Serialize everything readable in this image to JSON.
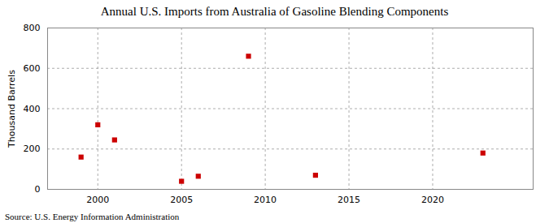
{
  "chart_data": {
    "type": "scatter",
    "title": "Annual U.S. Imports from Australia of Gasoline Blending Components",
    "ylabel": "Thousand Barrels",
    "annotation": "Source: U.S. Energy Information Administration",
    "x": [
      1999,
      2000,
      2001,
      2005,
      2006,
      2009,
      2013,
      2023
    ],
    "values": [
      160,
      320,
      245,
      40,
      65,
      660,
      70,
      180
    ],
    "color": "#cc0000",
    "marker": "square",
    "xlim": [
      1997,
      2026
    ],
    "ylim": [
      0,
      800
    ],
    "xticks": [
      2000,
      2005,
      2010,
      2015,
      2020
    ],
    "yticks": [
      0,
      200,
      400,
      600,
      800
    ],
    "grid": true
  }
}
